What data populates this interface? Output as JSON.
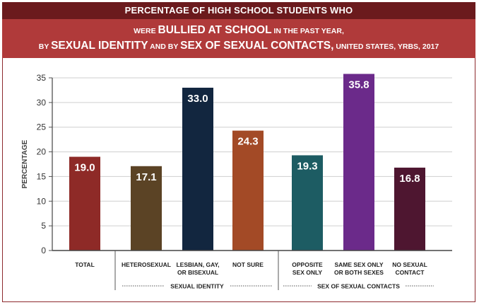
{
  "title": {
    "line1": "PERCENTAGE OF HIGH SCHOOL STUDENTS WHO",
    "line2": [
      {
        "text": "WERE ",
        "big": false
      },
      {
        "text": "BULLIED AT SCHOOL",
        "big": true
      },
      {
        "text": " IN THE PAST YEAR,",
        "big": false
      }
    ],
    "line3": [
      {
        "text": "BY ",
        "big": false
      },
      {
        "text": "SEXUAL IDENTITY",
        "big": true
      },
      {
        "text": " AND BY ",
        "big": false
      },
      {
        "text": "SEX OF SEXUAL CONTACTS,",
        "big": true
      },
      {
        "text": " UNITED STATES, YRBS, 2017",
        "big": false
      }
    ]
  },
  "chart_data": {
    "type": "bar",
    "ylabel": "PERCENTAGE",
    "ylim": [
      0,
      35
    ],
    "yticks": [
      0,
      5,
      10,
      15,
      20,
      25,
      30,
      35
    ],
    "grid": true,
    "bars": [
      {
        "label": [
          "TOTAL"
        ],
        "value": 19.0,
        "display": "19.0",
        "color": "#8e2a27"
      },
      {
        "label": [
          "HETEROSEXUAL"
        ],
        "value": 17.1,
        "display": "17.1",
        "color": "#5b4325"
      },
      {
        "label": [
          "LESBIAN, GAY,",
          "OR BISEXUAL"
        ],
        "value": 33.0,
        "display": "33.0",
        "color": "#12263f"
      },
      {
        "label": [
          "NOT SURE"
        ],
        "value": 24.3,
        "display": "24.3",
        "color": "#a34a26"
      },
      {
        "label": [
          "OPPOSITE",
          "SEX ONLY"
        ],
        "value": 19.3,
        "display": "19.3",
        "color": "#1d5c63"
      },
      {
        "label": [
          "SAME SEX ONLY",
          "OR BOTH SEXES"
        ],
        "value": 35.8,
        "display": "35.8",
        "color": "#6b2a8a"
      },
      {
        "label": [
          "NO SEXUAL",
          "CONTACT"
        ],
        "value": 16.8,
        "display": "16.8",
        "color": "#4e1630"
      }
    ],
    "groups": [
      {
        "label": "SEXUAL IDENTITY",
        "first_bar": 1,
        "last_bar": 3
      },
      {
        "label": "SEX OF SEXUAL CONTACTS",
        "first_bar": 4,
        "last_bar": 6
      }
    ]
  }
}
